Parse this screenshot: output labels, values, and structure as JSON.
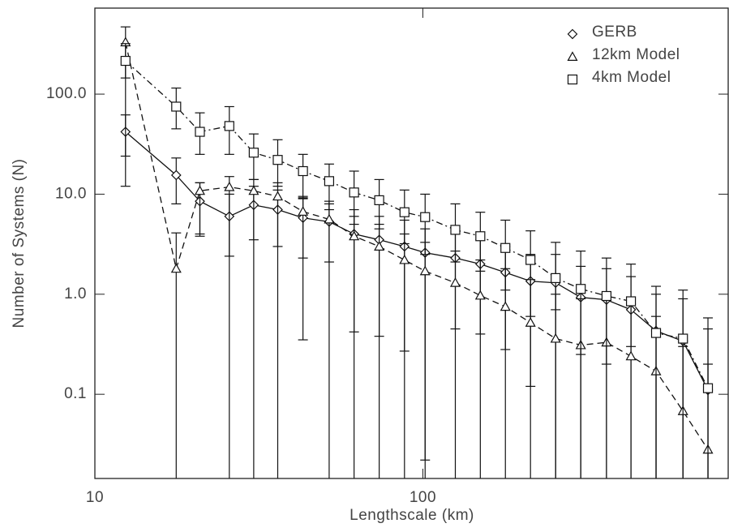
{
  "chart_data": {
    "type": "line",
    "xlabel": "Lengthscale (km)",
    "ylabel": "Number of Systems (N)",
    "xlog": true,
    "ylog": true,
    "xlim": [
      10,
      853
    ],
    "ylim": [
      0.0144,
      724
    ],
    "xticks": [
      10,
      100
    ],
    "yticks": [
      {
        "value": 0.1,
        "label": "0.1"
      },
      {
        "value": 1,
        "label": "1.0"
      },
      {
        "value": 10,
        "label": "10.0"
      },
      {
        "value": 100,
        "label": "100.0"
      }
    ],
    "legend": "top-right",
    "x": [
      12.4,
      17.7,
      20.9,
      25.7,
      30.5,
      36.1,
      43.1,
      51.8,
      61.7,
      73.6,
      87.9,
      101.6,
      125.6,
      149.7,
      178.5,
      212.9,
      254,
      303,
      363,
      431,
      514,
      621,
      740
    ],
    "series": [
      {
        "name": "GERB",
        "color": "#111111",
        "marker": "diamond",
        "line_style": "solid",
        "values": [
          42,
          15.5,
          8.5,
          6.0,
          7.8,
          7.0,
          5.8,
          5.3,
          4.0,
          3.5,
          3.0,
          2.6,
          2.3,
          2.0,
          1.65,
          1.35,
          1.3,
          0.93,
          0.88,
          0.7,
          0.43,
          0.34,
          0.11
        ],
        "err_high": [
          62,
          23,
          13,
          10,
          12,
          11,
          9.5,
          8.5,
          7,
          6,
          5.5,
          4.5,
          4,
          3.5,
          3,
          2.5,
          2.5,
          1.9,
          1.8,
          1.5,
          1.0,
          0.9,
          0.45
        ],
        "err_low": [
          24,
          8,
          3.8,
          2.4,
          3.5,
          3.0,
          2.3,
          2.1,
          0.42,
          0.38,
          0.27,
          0.022,
          0.45,
          0.4,
          0.28,
          0.12,
          0.01,
          0.01,
          0.01,
          0.01,
          0.01,
          0.01,
          0.01
        ]
      },
      {
        "name": "12km Model",
        "color": "#111111",
        "marker": "triangle",
        "line_style": "dashed",
        "values": [
          330,
          1.8,
          10.8,
          11.8,
          10.8,
          9.5,
          6.7,
          5.6,
          3.8,
          3.0,
          2.2,
          1.7,
          1.3,
          0.97,
          0.75,
          0.52,
          0.36,
          0.31,
          0.33,
          0.24,
          0.17,
          0.068,
          0.028
        ],
        "err_high": [
          470,
          4.1,
          13,
          15,
          14,
          13,
          9.2,
          8,
          6,
          5,
          4,
          3.3,
          2.7,
          2.2,
          1.8,
          1.4,
          1.0,
          0.9,
          1.0,
          0.8,
          0.6,
          0.3,
          0.2
        ],
        "err_low": [
          12,
          0.01,
          4,
          0.01,
          0.01,
          0.01,
          0.35,
          0.01,
          0.01,
          0.01,
          0.01,
          0.01,
          0.01,
          0.01,
          0.01,
          0.01,
          0.01,
          0.01,
          0.01,
          0.01,
          0.01,
          0.01,
          0.01
        ]
      },
      {
        "name": "4km Model",
        "color": "#111111",
        "marker": "square",
        "line_style": "dashdot",
        "values": [
          215,
          75,
          42,
          48,
          26,
          22,
          17,
          13.5,
          10.4,
          8.7,
          6.6,
          5.9,
          4.4,
          3.8,
          2.9,
          2.2,
          1.45,
          1.13,
          0.96,
          0.85,
          0.41,
          0.36,
          0.115
        ],
        "err_high": [
          320,
          115,
          65,
          75,
          40,
          35,
          25,
          20,
          17,
          14,
          11,
          10,
          8,
          6.6,
          5.5,
          4.3,
          3.3,
          2.7,
          2.3,
          2.0,
          1.2,
          1.1,
          0.58
        ],
        "err_low": [
          145,
          45,
          25,
          25,
          14,
          12,
          9,
          7,
          5,
          4.5,
          3.2,
          2.5,
          2.1,
          1.7,
          1.1,
          0.6,
          0.7,
          0.25,
          0.2,
          0.3,
          0.01,
          0.01,
          0.01
        ]
      }
    ]
  }
}
